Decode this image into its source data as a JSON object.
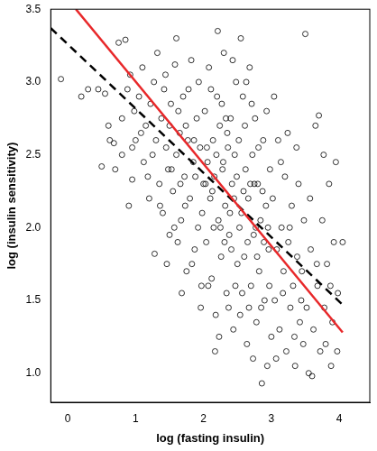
{
  "chart_data": {
    "type": "scatter",
    "x_label": "log (fasting insulin)",
    "y_label": "log (insulin sensitivity)",
    "xlim": [
      -0.25,
      4.45
    ],
    "ylim": [
      0.8,
      3.5
    ],
    "xticks": [
      0,
      1,
      2,
      3,
      4
    ],
    "yticks": [
      {
        "value": 1,
        "label": "1.0"
      },
      1.5,
      {
        "value": 2,
        "label": "2.0"
      },
      2.5,
      {
        "value": 3,
        "label": "3.0"
      },
      3.5
    ],
    "grid": false,
    "series": [
      {
        "type": "scatter",
        "color": "#000000",
        "marker": "open_circle",
        "x": [
          -0.1,
          0.2,
          0.3,
          0.45,
          0.55,
          0.6,
          0.62,
          0.68,
          0.7,
          0.5,
          0.75,
          0.85,
          0.8,
          0.9,
          0.95,
          0.98,
          0.88,
          0.92,
          1.0,
          0.8,
          0.95,
          1.05,
          1.1,
          1.12,
          1.15,
          1.2,
          1.22,
          1.25,
          1.28,
          1.3,
          1.32,
          1.35,
          1.38,
          1.4,
          1.42,
          1.45,
          1.48,
          1.5,
          1.5,
          1.18,
          1.08,
          1.27,
          1.36,
          1.44,
          1.46,
          1.52,
          1.55,
          1.58,
          1.6,
          1.62,
          1.65,
          1.67,
          1.7,
          1.72,
          1.75,
          1.77,
          1.8,
          1.82,
          1.85,
          1.87,
          1.9,
          1.92,
          1.95,
          1.97,
          2.0,
          1.53,
          1.57,
          1.63,
          1.68,
          1.73,
          1.78,
          1.83,
          1.88,
          1.93,
          1.98,
          1.6,
          1.74,
          1.86,
          1.96,
          1.66,
          2.02,
          2.04,
          2.06,
          2.08,
          2.1,
          2.12,
          2.14,
          2.16,
          2.18,
          2.2,
          2.22,
          2.24,
          2.26,
          2.28,
          2.3,
          2.32,
          2.34,
          2.36,
          2.38,
          2.4,
          2.42,
          2.44,
          2.46,
          2.48,
          2.5,
          2.03,
          2.07,
          2.11,
          2.15,
          2.19,
          2.23,
          2.27,
          2.31,
          2.35,
          2.39,
          2.43,
          2.47,
          2.21,
          2.29,
          2.37,
          2.45,
          2.13,
          2.25,
          2.33,
          2.41,
          2.49,
          2.17,
          2.05,
          2.52,
          2.54,
          2.56,
          2.58,
          2.6,
          2.62,
          2.64,
          2.66,
          2.68,
          2.7,
          2.72,
          2.74,
          2.76,
          2.78,
          2.8,
          2.82,
          2.84,
          2.86,
          2.88,
          2.9,
          2.92,
          2.94,
          2.96,
          2.98,
          3.0,
          2.53,
          2.57,
          2.61,
          2.65,
          2.69,
          2.73,
          2.77,
          2.81,
          2.85,
          2.89,
          2.93,
          2.97,
          2.55,
          2.63,
          2.71,
          2.79,
          2.87,
          2.95,
          2.59,
          2.67,
          2.75,
          3.02,
          3.05,
          3.08,
          3.1,
          3.12,
          3.15,
          3.18,
          3.2,
          3.22,
          3.25,
          3.28,
          3.3,
          3.32,
          3.35,
          3.38,
          3.4,
          3.42,
          3.45,
          3.48,
          3.5,
          3.04,
          3.14,
          3.24,
          3.34,
          3.44,
          3.07,
          3.17,
          3.27,
          3.37,
          3.47,
          3.52,
          3.55,
          3.58,
          3.6,
          3.62,
          3.65,
          3.68,
          3.7,
          3.72,
          3.75,
          3.78,
          3.8,
          3.82,
          3.85,
          3.88,
          3.9,
          3.92,
          3.95,
          3.98,
          4.05,
          3.57,
          3.67,
          3.77,
          3.87,
          3.97
        ],
        "values": [
          3.02,
          2.9,
          2.95,
          2.95,
          2.92,
          2.7,
          2.6,
          2.58,
          2.4,
          2.42,
          3.27,
          3.29,
          2.75,
          2.15,
          2.55,
          2.8,
          2.95,
          3.05,
          2.6,
          2.5,
          2.33,
          2.9,
          3.1,
          2.45,
          2.7,
          2.2,
          2.85,
          2.5,
          1.82,
          2.6,
          3.2,
          2.3,
          2.75,
          2.1,
          2.95,
          2.55,
          2.4,
          1.95,
          2.7,
          2.35,
          2.65,
          3.0,
          2.15,
          3.05,
          1.75,
          2.85,
          2.25,
          3.12,
          2.5,
          1.9,
          2.65,
          2.05,
          2.9,
          2.35,
          1.7,
          2.6,
          2.2,
          3.15,
          2.45,
          1.85,
          2.75,
          2.0,
          2.55,
          1.6,
          2.3,
          2.4,
          2.0,
          2.8,
          1.55,
          2.15,
          2.95,
          1.75,
          2.35,
          3.0,
          2.1,
          3.3,
          2.7,
          2.6,
          1.45,
          2.3,
          2.8,
          1.9,
          2.45,
          3.1,
          2.2,
          1.65,
          2.6,
          2.35,
          1.4,
          2.9,
          2.05,
          2.7,
          1.8,
          2.4,
          3.2,
          2.15,
          1.55,
          2.55,
          1.95,
          2.75,
          2.3,
          1.3,
          2.5,
          3.0,
          1.75,
          2.3,
          1.6,
          2.95,
          2.0,
          2.5,
          1.25,
          2.85,
          1.9,
          2.65,
          2.1,
          3.15,
          1.6,
          3.35,
          2.45,
          1.45,
          2.2,
          2.25,
          2.0,
          2.75,
          1.85,
          2.35,
          1.15,
          2.55,
          2.6,
          1.4,
          2.1,
          2.9,
          1.8,
          2.4,
          1.2,
          2.2,
          3.1,
          1.6,
          2.5,
          1.95,
          2.75,
          1.35,
          2.3,
          1.7,
          2.05,
          0.93,
          2.6,
          1.5,
          2.15,
          1.05,
          1.85,
          2.4,
          1.25,
          2.0,
          1.55,
          2.7,
          1.9,
          2.3,
          1.1,
          2.0,
          2.55,
          1.45,
          1.9,
          2.8,
          1.6,
          3.3,
          3.0,
          2.85,
          1.8,
          2.25,
          2.0,
          2.25,
          1.45,
          2.3,
          2.2,
          1.5,
          1.85,
          2.6,
          1.3,
          2.0,
          1.7,
          2.35,
          1.15,
          1.9,
          1.45,
          2.15,
          1.6,
          1.05,
          1.8,
          2.3,
          1.35,
          1.7,
          2.05,
          3.33,
          2.9,
          2.45,
          2.65,
          1.25,
          1.5,
          1.1,
          1.55,
          2.0,
          2.55,
          1.2,
          1.45,
          1.0,
          1.85,
          0.98,
          1.3,
          2.7,
          1.6,
          2.77,
          1.15,
          2.05,
          1.45,
          1.2,
          1.75,
          2.3,
          1.05,
          1.35,
          1.9,
          2.45,
          1.55,
          1.9,
          2.2,
          1.75,
          2.5,
          1.6,
          1.15
        ]
      },
      {
        "type": "line",
        "color": "#e8282a",
        "line_style": "solid",
        "x": [
          0.12,
          4.05
        ],
        "values": [
          3.5,
          1.28
        ]
      },
      {
        "type": "line",
        "color": "#000000",
        "line_style": "dashed",
        "x": [
          -0.25,
          4.05
        ],
        "values": [
          3.37,
          1.47
        ]
      }
    ]
  }
}
